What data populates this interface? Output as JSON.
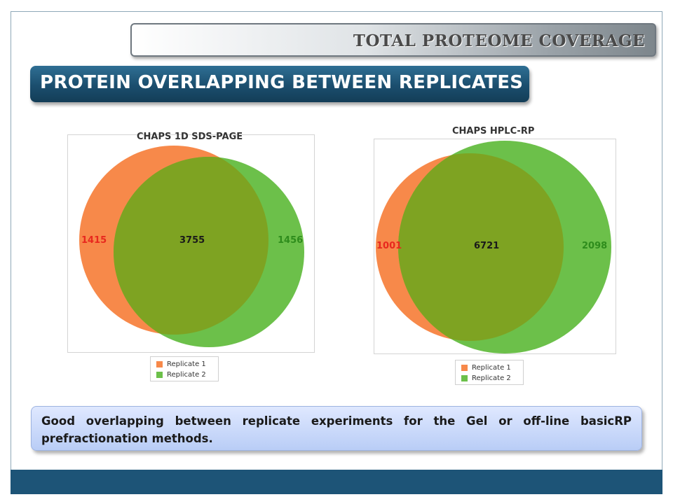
{
  "header": {
    "top_title": "TOTAL PROTEOME COVERAGE",
    "section_title": "PROTEIN OVERLAPPING BETWEEN REPLICATES"
  },
  "charts": [
    {
      "title": "CHAPS 1D SDS-PAGE",
      "left_only": "1415",
      "overlap": "3755",
      "right_only": "1456",
      "legend": [
        "Replicate 1",
        "Replicate 2"
      ]
    },
    {
      "title": "CHAPS HPLC-RP",
      "left_only": "1001",
      "overlap": "6721",
      "right_only": "2098",
      "legend": [
        "Replicate 1",
        "Replicate 2"
      ]
    }
  ],
  "note": "Good overlapping between replicate experiments for the Gel or off-line basicRP prefractionation methods.",
  "colors": {
    "replicate_1": "#f7894a",
    "replicate_2": "#6cc04a",
    "overlap": "#7ea322",
    "left_label": "#e8281e",
    "right_label": "#2e8c1c",
    "banner_dark": "#1b4e6e",
    "footer": "#1d5477"
  }
}
